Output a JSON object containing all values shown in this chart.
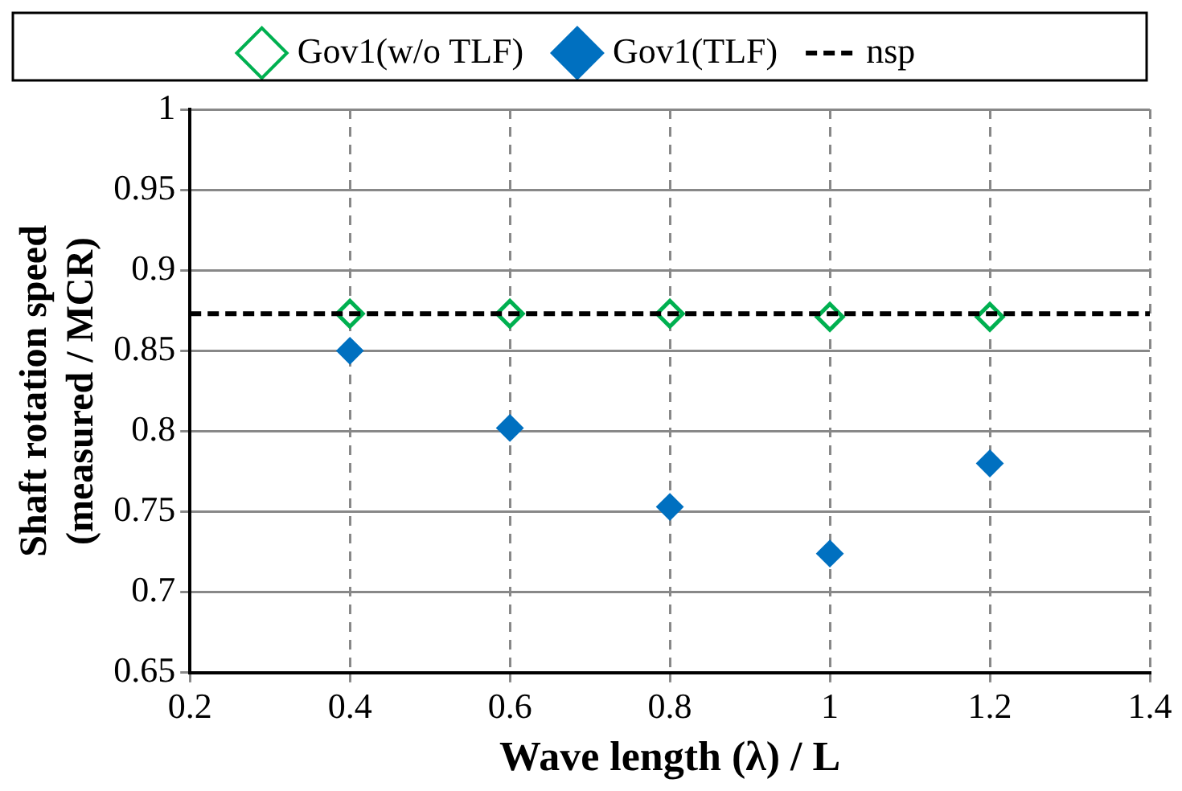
{
  "chart_data": {
    "type": "scatter",
    "xlabel": "Wave length (λ) / L",
    "ylabel": "Shaft rotation speed\n(measured / MCR)",
    "x": [
      0.4,
      0.6,
      0.8,
      1.0,
      1.2
    ],
    "series": [
      {
        "name": "Gov1(w/o TLF)",
        "color": "#00b050",
        "values": [
          0.873,
          0.873,
          0.873,
          0.871,
          0.871
        ]
      },
      {
        "name": "Gov1(TLF)",
        "color": "#0070c0",
        "values": [
          0.85,
          0.802,
          0.753,
          0.724,
          0.78
        ]
      }
    ],
    "ref_lines": [
      {
        "axis": "y",
        "value": 0.873,
        "label": "nsp",
        "color": "#000000",
        "line_style": "dashed"
      }
    ],
    "xlim": [
      0.2,
      1.4
    ],
    "xticks": [
      0.2,
      0.4,
      0.6,
      0.8,
      1,
      1.2,
      1.4
    ],
    "ylim": [
      0.65,
      1
    ],
    "yticks": [
      0.65,
      0.7,
      0.75,
      0.8,
      0.85,
      0.9,
      0.95,
      1
    ],
    "grid": true,
    "legend": "top",
    "marker": "diamond"
  }
}
